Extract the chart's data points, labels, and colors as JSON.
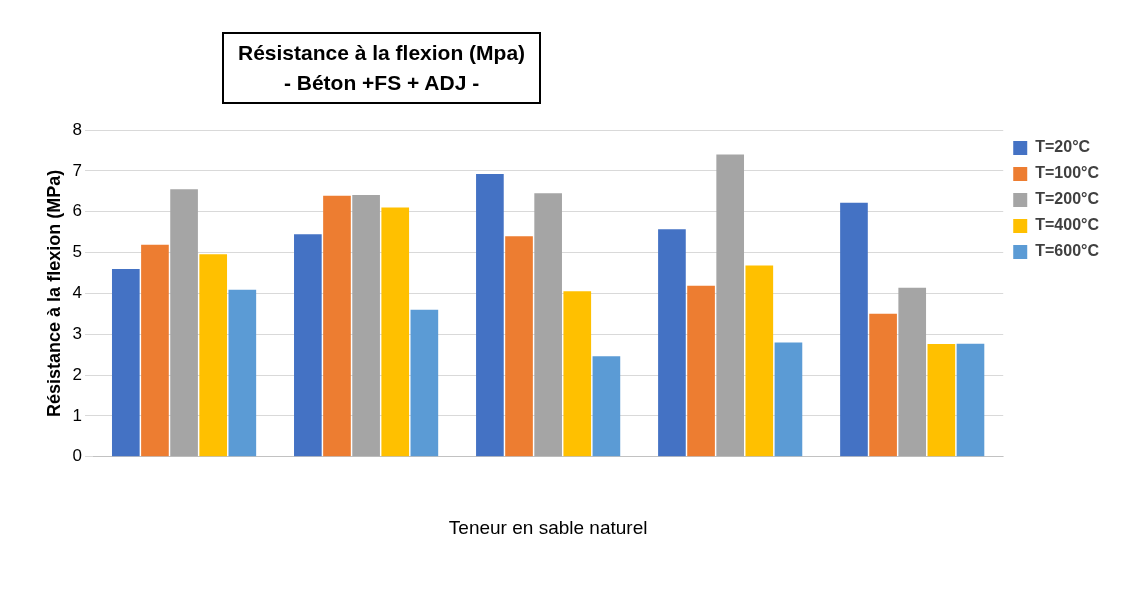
{
  "chart_data": {
    "type": "bar",
    "title": "Résistance à la flexion (Mpa)",
    "subtitle": "- Béton +FS + ADJ -",
    "xlabel": "Teneur en sable naturel",
    "ylabel": "Résistance à la flexion (MPa)",
    "categories": [
      null,
      null,
      null,
      null,
      null
    ],
    "series": [
      {
        "name": "T=20°C",
        "color": "#4472c4",
        "values": [
          4.6,
          5.45,
          6.92,
          5.57,
          6.22
        ]
      },
      {
        "name": "T=100°C",
        "color": "#ed7d31",
        "values": [
          5.19,
          6.39,
          5.4,
          4.19,
          3.5
        ]
      },
      {
        "name": "T=200°C",
        "color": "#a5a5a5",
        "values": [
          6.55,
          6.41,
          6.45,
          7.4,
          4.14
        ]
      },
      {
        "name": "T=400°C",
        "color": "#ffc000",
        "values": [
          4.96,
          6.1,
          4.05,
          4.68,
          2.76
        ]
      },
      {
        "name": "T=600°C",
        "color": "#5b9bd5",
        "values": [
          4.09,
          3.6,
          2.46,
          2.8,
          2.77
        ]
      }
    ],
    "ylim": [
      0,
      8
    ],
    "yticks": [
      0,
      1,
      2,
      3,
      4,
      5,
      6,
      7,
      8
    ],
    "grid": "y",
    "legend": "top right"
  }
}
